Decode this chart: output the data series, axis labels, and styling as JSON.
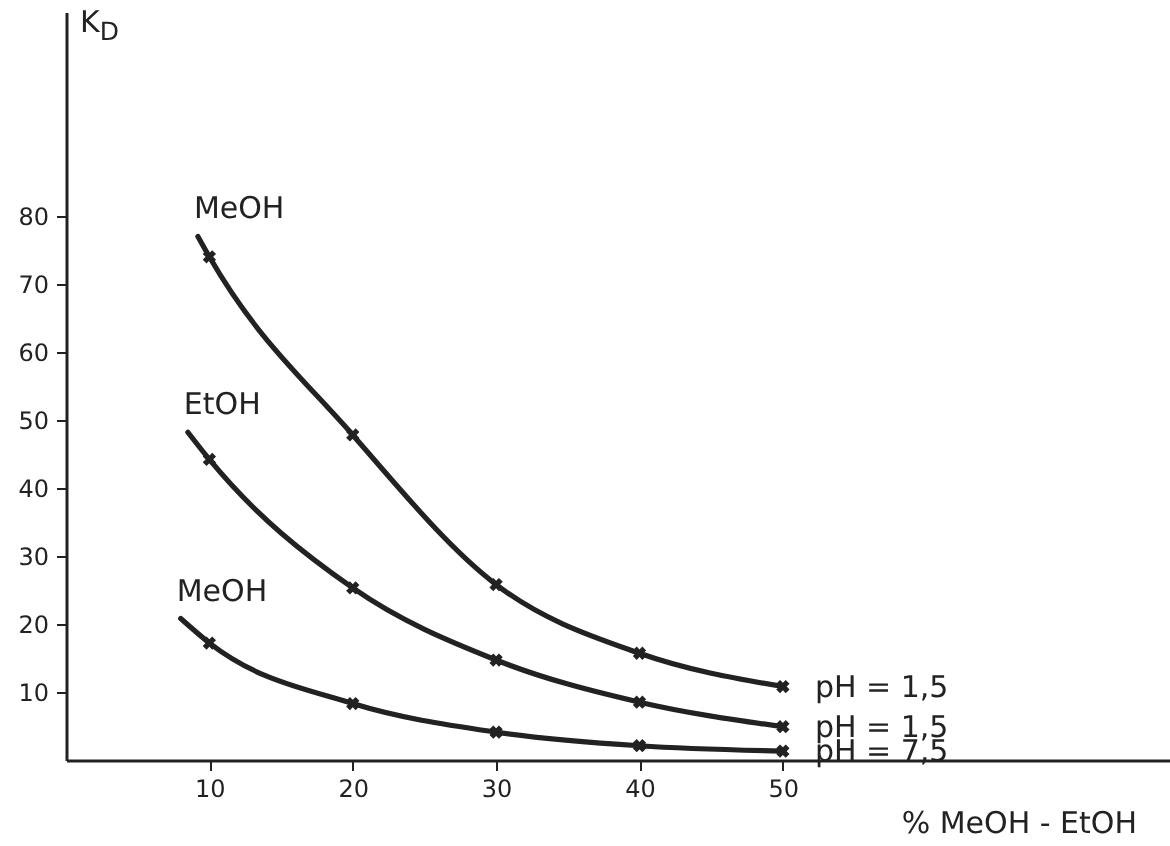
{
  "chart_data": {
    "type": "line",
    "xlabel": "% MeOH - EtOH",
    "ylabel": "K$_{D}$",
    "xlim": [
      0,
      77
    ],
    "ylim": [
      0,
      110
    ],
    "xticks": [
      10,
      20,
      30,
      40,
      50
    ],
    "yticks": [
      10,
      20,
      30,
      40,
      50,
      60,
      70,
      80
    ],
    "grid": false,
    "line_style": "solid",
    "series": [
      {
        "name": "MeOH",
        "color": "#222222",
        "x": [
          9.2,
          10,
          20,
          30,
          40,
          50
        ],
        "values": [
          77,
          74,
          47.8,
          25.8,
          15.7,
          10.8
        ]
      },
      {
        "name": "EtOH",
        "color": "#222222",
        "x": [
          8.5,
          10,
          20,
          30,
          40,
          50
        ],
        "values": [
          48.2,
          44.2,
          25.3,
          14.7,
          8.5,
          4.9
        ]
      },
      {
        "name": "MeOH",
        "color": "#222222",
        "x": [
          8,
          10,
          20,
          30,
          40,
          50
        ],
        "values": [
          20.8,
          17.2,
          8.3,
          4.1,
          2.1,
          1.3
        ]
      },
      {
        "type": "scatter",
        "marker": "cross",
        "color": "#222222",
        "x": [
          10,
          20,
          30,
          40,
          50
        ],
        "values": [
          74,
          47.8,
          25.8,
          15.7,
          10.8
        ]
      },
      {
        "type": "scatter",
        "marker": "cross",
        "color": "#222222",
        "x": [
          10,
          20,
          30,
          40,
          50
        ],
        "values": [
          44.2,
          25.3,
          14.7,
          8.5,
          4.9
        ]
      },
      {
        "type": "scatter",
        "marker": "cross",
        "color": "#222222",
        "x": [
          10,
          20,
          30,
          40,
          50
        ],
        "values": [
          17.2,
          8.3,
          4.1,
          2.1,
          1.3
        ]
      }
    ],
    "annotations": [
      "pH = 1,5",
      "pH = 1,5",
      "pH = 7,5"
    ]
  }
}
